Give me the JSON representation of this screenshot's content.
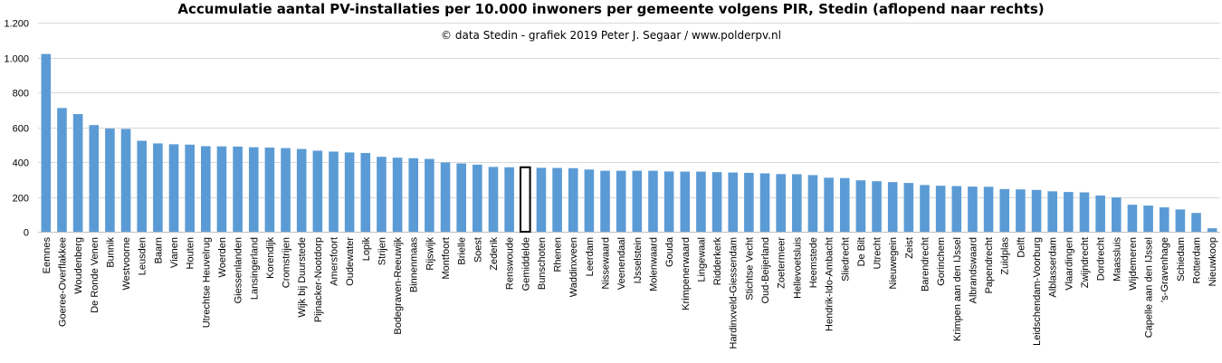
{
  "chart_data": {
    "type": "bar",
    "title": "Accumulatie  aantal PV-installaties  per 10.000 inwoners per gemeente volgens PIR, Stedin (aflopend naar rechts)",
    "subtitle": "© data Stedin - grafiek  2019 Peter J. Segaar / www.polderpv.nl",
    "ylim": [
      0,
      1200
    ],
    "yticks": [
      0,
      200,
      400,
      600,
      800,
      1000,
      1200
    ],
    "ytick_labels": [
      "0",
      "200",
      "400",
      "600",
      "800",
      "1.000",
      "1.200"
    ],
    "grid": true,
    "bar_color": "#5b9bd5",
    "highlight_category": "Gemiddelde",
    "categories": [
      "Eemnes",
      "Goeree-Overflakkee",
      "Woudenberg",
      "De Ronde Venen",
      "Bunnik",
      "Westvoorne",
      "Leusden",
      "Baarn",
      "Vianen",
      "Houten",
      "Utrechtse Heuvelrug",
      "Woerden",
      "Giessenlanden",
      "Lansingerland",
      "Korendijk",
      "Cromstrijen",
      "Wijk bij Duurstede",
      "Pijnacker-Nootdorp",
      "Amersfoort",
      "Oudewater",
      "Lopik",
      "Strijen",
      "Bodegraven-Reeuwijk",
      "Binnenmaas",
      "Rijswijk",
      "Montfoort",
      "Brielle",
      "Soest",
      "Zederik",
      "Renswoude",
      "Gemiddelde",
      "Bunschoten",
      "Rhenen",
      "Waddinxveen",
      "Leerdam",
      "Nissewaard",
      "Veenendaal",
      "IJsselstein",
      "Molenwaard",
      "Gouda",
      "Krimpenerwaard",
      "Lingewaal",
      "Ridderkerk",
      "Hardinxveld-Giessendam",
      "Stichtse Vecht",
      "Oud-Beijerland",
      "Zoetermeer",
      "Hellevoetsluis",
      "Heemstede",
      "Hendrik-Ido-Ambacht",
      "Sliedrecht",
      "De Bilt",
      "Utrecht",
      "Nieuwegein",
      "Zeist",
      "Barendrecht",
      "Gorinchem",
      "Krimpen aan den IJssel",
      "Albrandswaard",
      "Papendrecht",
      "Zuidplas",
      "Delft",
      "Leidschendam-Voorburg",
      "Alblasserdam",
      "Vlaardingen",
      "Zwijndrecht",
      "Dordrecht",
      "Maassluis",
      "Wijdemeren",
      "Capelle aan den IJssel",
      "'s-Gravenhage",
      "Schiedam",
      "Rotterdam",
      "Nieuwkoop"
    ],
    "values": [
      1020,
      710,
      675,
      612,
      592,
      590,
      522,
      507,
      502,
      500,
      491,
      490,
      489,
      485,
      483,
      480,
      475,
      465,
      460,
      455,
      452,
      430,
      425,
      422,
      418,
      398,
      392,
      385,
      372,
      370,
      370,
      367,
      366,
      365,
      357,
      350,
      350,
      350,
      350,
      346,
      345,
      345,
      342,
      340,
      338,
      335,
      331,
      330,
      325,
      310,
      308,
      295,
      290,
      285,
      280,
      268,
      264,
      262,
      259,
      258,
      245,
      243,
      240,
      232,
      228,
      226,
      208,
      197,
      155,
      150,
      140,
      128,
      108,
      20
    ]
  }
}
